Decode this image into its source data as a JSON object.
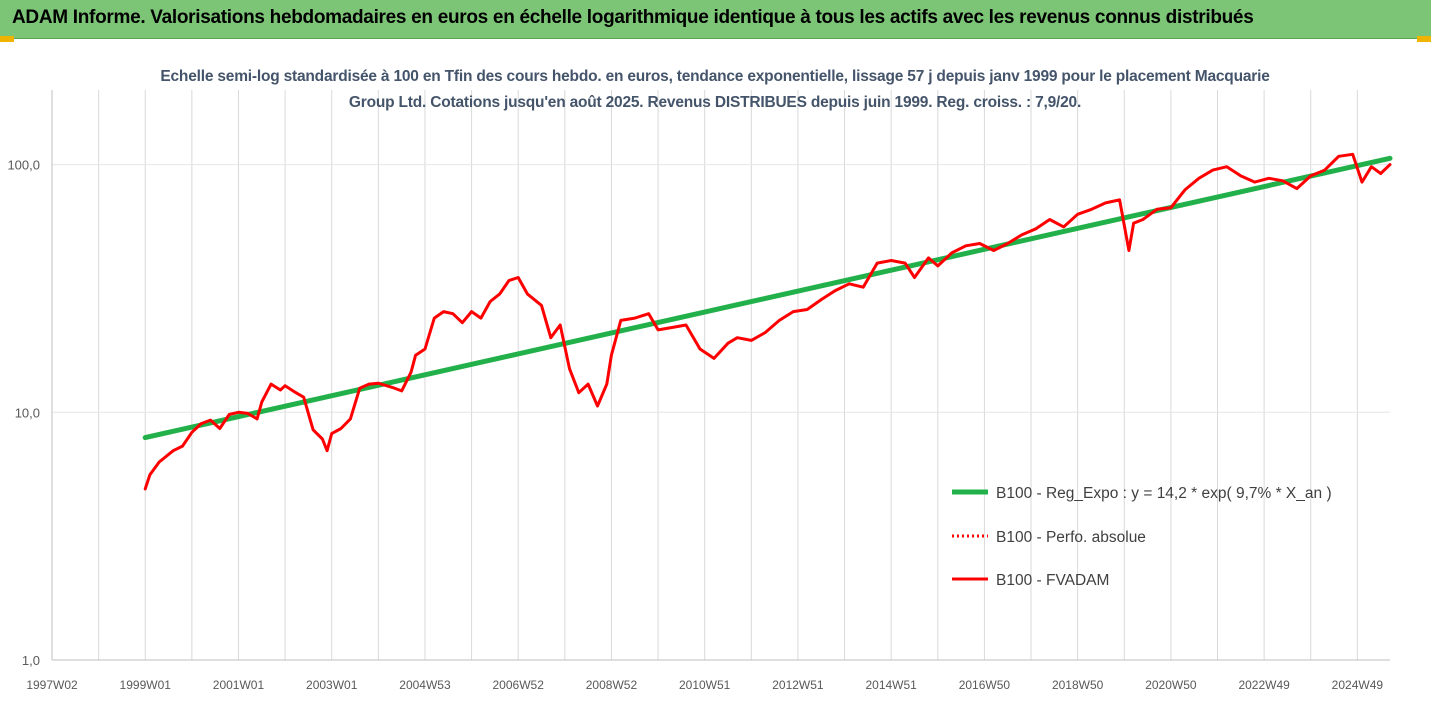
{
  "banner": {
    "title": "ADAM Informe. Valorisations hebdomadaires en euros en échelle logarithmique identique à tous les actifs avec les revenus connus distribués"
  },
  "chart_data": {
    "type": "line",
    "title": "Echelle semi-log standardisée à 100 en Tfin des cours hebdo. en euros, tendance exponentielle, lissage 57 j depuis janv 1999 pour le placement Macquarie Group Ltd. Cotations jusqu'en août 2025.  Revenus DISTRIBUES depuis juin 1999. Reg. croiss. : 7,9/20.",
    "y_scale": "log",
    "ylim": [
      1,
      200
    ],
    "y_ticks": [
      "1,0",
      "10,0",
      "100,0"
    ],
    "y_tick_values": [
      1,
      10,
      100
    ],
    "xlim": [
      1997.0,
      2025.7
    ],
    "x_ticks": [
      "1997W02",
      "1999W01",
      "2001W01",
      "2003W01",
      "2004W53",
      "2006W52",
      "2008W52",
      "2010W51",
      "2012W51",
      "2014W51",
      "2016W50",
      "2018W50",
      "2020W50",
      "2022W49",
      "2024W49"
    ],
    "x_tick_years": [
      1997,
      1999,
      2001,
      2003,
      2005,
      2007,
      2009,
      2011,
      2013,
      2015,
      2017,
      2019,
      2021,
      2023,
      2025
    ],
    "grid": "vertical",
    "legend_position": "right",
    "series": [
      {
        "name": "B100 - Reg_Expo : y = 14,2 * exp( 9,7% *  X_an )",
        "color": "#22b04a",
        "style": "solid-thick",
        "x": [
          1999.0,
          2025.7
        ],
        "y": [
          7.9,
          106
        ]
      },
      {
        "name": "B100 - Perfo. absolue",
        "color": "#ff0000",
        "style": "dotted",
        "x": [],
        "y": []
      },
      {
        "name": "B100 - FVADAM",
        "color": "#ff0000",
        "style": "solid",
        "x": [
          1999.0,
          1999.1,
          1999.3,
          1999.6,
          1999.8,
          2000.0,
          2000.2,
          2000.4,
          2000.6,
          2000.8,
          2001.0,
          2001.2,
          2001.4,
          2001.5,
          2001.7,
          2001.9,
          2002.0,
          2002.2,
          2002.4,
          2002.6,
          2002.8,
          2002.9,
          2003.0,
          2003.2,
          2003.4,
          2003.6,
          2003.8,
          2004.0,
          2004.3,
          2004.5,
          2004.7,
          2004.8,
          2005.0,
          2005.2,
          2005.4,
          2005.6,
          2005.8,
          2006.0,
          2006.2,
          2006.4,
          2006.6,
          2006.8,
          2007.0,
          2007.2,
          2007.5,
          2007.7,
          2007.9,
          2008.1,
          2008.3,
          2008.5,
          2008.7,
          2008.9,
          2009.0,
          2009.2,
          2009.5,
          2009.8,
          2010.0,
          2010.3,
          2010.6,
          2010.9,
          2011.2,
          2011.5,
          2011.7,
          2012.0,
          2012.3,
          2012.6,
          2012.9,
          2013.2,
          2013.5,
          2013.8,
          2014.1,
          2014.4,
          2014.7,
          2015.0,
          2015.3,
          2015.5,
          2015.8,
          2016.0,
          2016.3,
          2016.6,
          2016.9,
          2017.2,
          2017.5,
          2017.8,
          2018.1,
          2018.4,
          2018.7,
          2019.0,
          2019.3,
          2019.6,
          2019.9,
          2020.1,
          2020.2,
          2020.4,
          2020.7,
          2021.0,
          2021.3,
          2021.6,
          2021.9,
          2022.2,
          2022.5,
          2022.8,
          2023.1,
          2023.4,
          2023.7,
          2024.0,
          2024.3,
          2024.6,
          2024.9,
          2025.1,
          2025.3,
          2025.5,
          2025.7
        ],
        "y": [
          4.9,
          5.6,
          6.3,
          7.0,
          7.3,
          8.3,
          9.0,
          9.3,
          8.6,
          9.8,
          10.0,
          9.9,
          9.4,
          11.0,
          13.0,
          12.3,
          12.8,
          12.1,
          11.5,
          8.5,
          7.8,
          7.0,
          8.2,
          8.6,
          9.4,
          12.5,
          13.0,
          13.1,
          12.6,
          12.2,
          14.5,
          17.0,
          18.0,
          24.0,
          25.5,
          25.0,
          23.0,
          25.5,
          24.0,
          28.0,
          30.0,
          34.0,
          35.0,
          30.0,
          27.0,
          20.0,
          22.5,
          15.0,
          12.0,
          13.0,
          10.6,
          13.0,
          17.0,
          23.5,
          24.0,
          25.0,
          21.5,
          22.0,
          22.5,
          18.0,
          16.5,
          19.0,
          20.0,
          19.5,
          21.0,
          23.5,
          25.5,
          26.0,
          28.5,
          31.0,
          33.0,
          32.0,
          40.0,
          41.0,
          40.0,
          35.0,
          42.0,
          39.0,
          44.0,
          47.0,
          48.0,
          45.0,
          48.0,
          52.0,
          55.0,
          60.0,
          56.0,
          63.0,
          66.0,
          70.0,
          72.0,
          45.0,
          58.0,
          60.0,
          66.0,
          67.0,
          79.0,
          88.0,
          95.0,
          98.0,
          90.0,
          85.0,
          88.0,
          86.0,
          80.0,
          90.0,
          95.0,
          108.0,
          110.0,
          85.0,
          98.0,
          92.0,
          100.0
        ]
      }
    ]
  }
}
